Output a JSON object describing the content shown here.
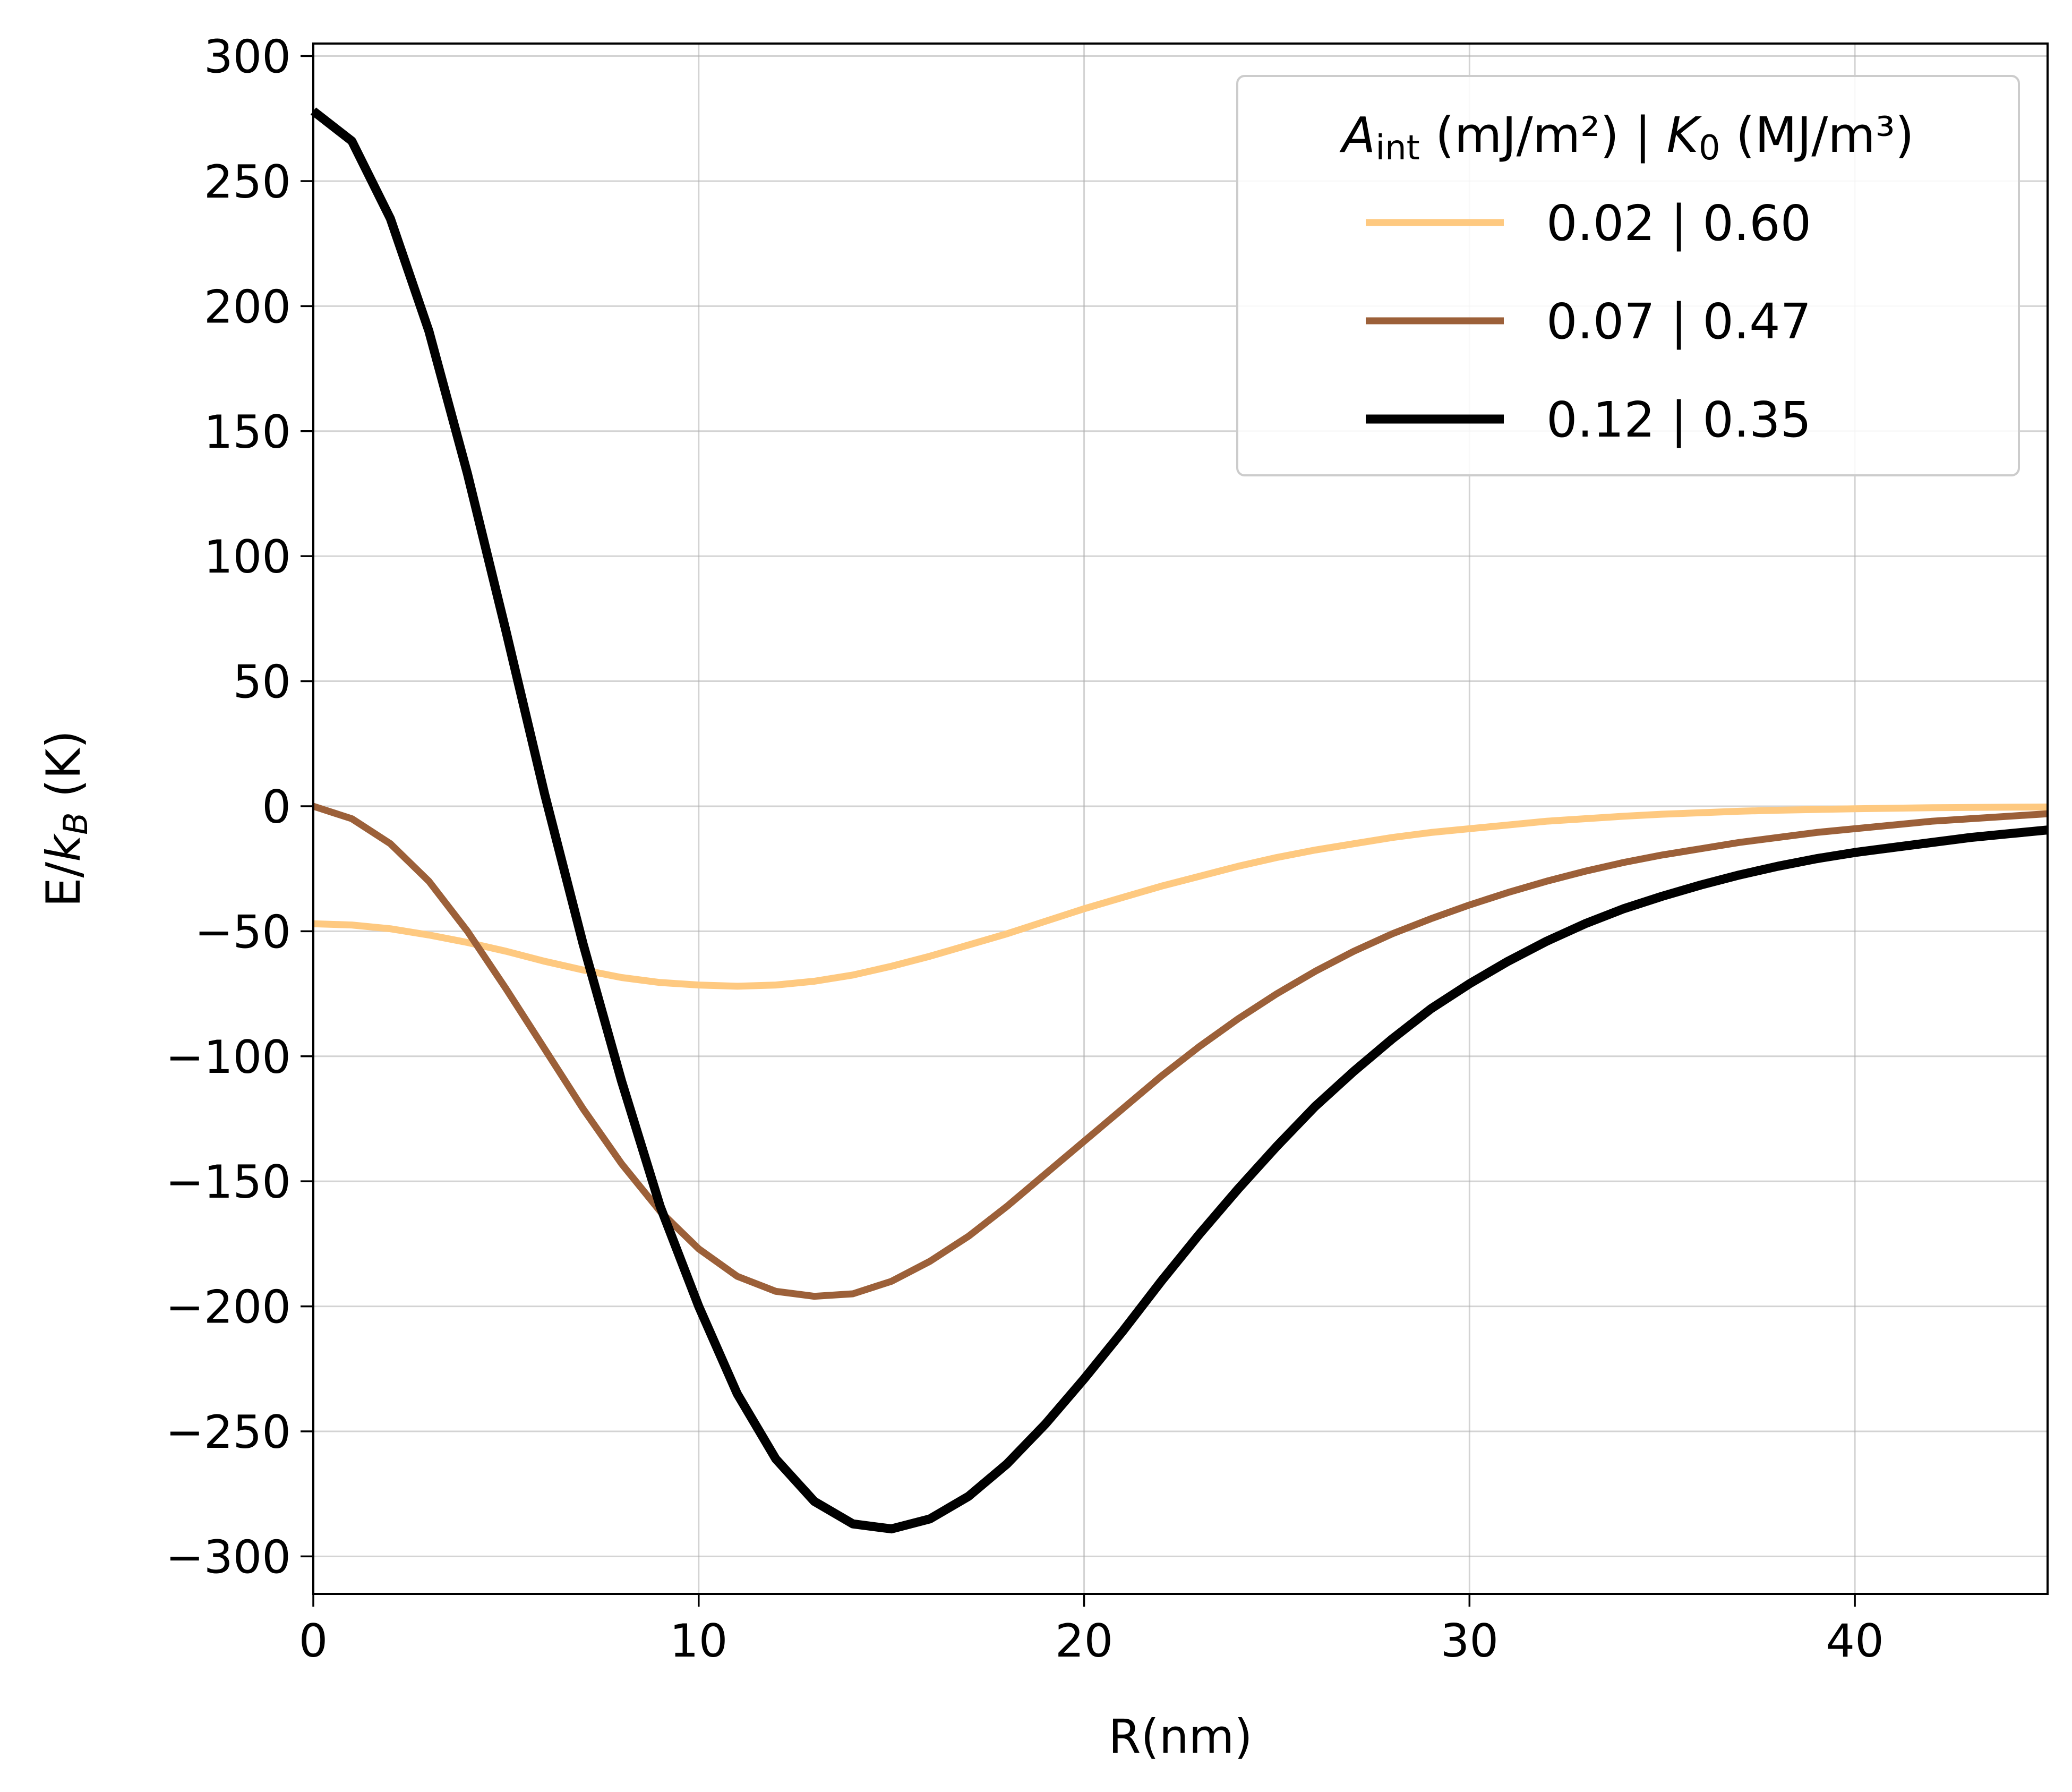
{
  "chart_data": {
    "type": "line",
    "title": "",
    "xlabel": "R(nm)",
    "ylabel": "E/k_B (K)",
    "ylabel_parts": {
      "main": "E/",
      "italic": "k",
      "sub": "B",
      "tail": " (K)"
    },
    "xlim": [
      0,
      45
    ],
    "ylim": [
      -315,
      305
    ],
    "x_ticks": [
      0,
      10,
      20,
      30,
      40
    ],
    "x_tick_labels": [
      "0",
      "10",
      "20",
      "30",
      "40"
    ],
    "y_ticks": [
      300,
      250,
      200,
      150,
      100,
      50,
      0,
      -50,
      -100,
      -150,
      -200,
      -250,
      -300
    ],
    "y_tick_labels": [
      "300",
      "250",
      "200",
      "150",
      "100",
      "50",
      "0",
      "−50",
      "−100",
      "−150",
      "−200",
      "−250",
      "−300"
    ],
    "grid": true,
    "legend": {
      "placement": "upper right",
      "title_parts": {
        "a_main": "A",
        "a_sub": "int",
        "a_unit": " (mJ/m²) | ",
        "k_main": "K",
        "k_sub": "0",
        "k_unit": " (MJ/m³)"
      }
    },
    "x": [
      0,
      1,
      2,
      3,
      4,
      5,
      6,
      7,
      8,
      9,
      10,
      11,
      12,
      13,
      14,
      15,
      16,
      17,
      18,
      19,
      20,
      21,
      22,
      23,
      24,
      25,
      26,
      27,
      28,
      29,
      30,
      31,
      32,
      33,
      34,
      35,
      36,
      37,
      38,
      39,
      40,
      41,
      42,
      43,
      44,
      45
    ],
    "series": [
      {
        "name": "0.02 | 0.60",
        "color": "#fec980",
        "line_weight": "medium",
        "values": [
          -47,
          -47.5,
          -49,
          -51.5,
          -54.5,
          -58,
          -62,
          -65.5,
          -68.5,
          -70.5,
          -71.5,
          -72,
          -71.5,
          -70,
          -67.5,
          -64,
          -60,
          -55.5,
          -51,
          -46,
          -41,
          -36.5,
          -32,
          -28,
          -24,
          -20.5,
          -17.5,
          -15,
          -12.5,
          -10.5,
          -9,
          -7.5,
          -6,
          -5,
          -4,
          -3.2,
          -2.6,
          -2,
          -1.6,
          -1.3,
          -1,
          -0.8,
          -0.6,
          -0.5,
          -0.4,
          -0.3
        ]
      },
      {
        "name": "0.07 | 0.47",
        "color": "#9c6039",
        "line_weight": "medium",
        "values": [
          0,
          -5,
          -15,
          -30,
          -50,
          -73,
          -97,
          -121,
          -143,
          -162,
          -177,
          -188,
          -194,
          -196,
          -195,
          -190,
          -182,
          -172,
          -160,
          -147,
          -134,
          -121,
          -108,
          -96,
          -85,
          -75,
          -66,
          -58,
          -51,
          -45,
          -39.5,
          -34.5,
          -30,
          -26,
          -22.5,
          -19.5,
          -17,
          -14.5,
          -12.5,
          -10.5,
          -9,
          -7.5,
          -6,
          -5,
          -4,
          -3
        ]
      },
      {
        "name": "0.12 | 0.35",
        "color": "#000000",
        "line_weight": "heavy",
        "values": [
          278,
          266,
          235,
          190,
          133,
          70,
          5,
          -55,
          -110,
          -160,
          -200,
          -235,
          -261,
          -278,
          -287,
          -289,
          -285,
          -276,
          -263,
          -247,
          -229,
          -210,
          -190,
          -171,
          -153,
          -136,
          -120,
          -106,
          -93,
          -81,
          -71,
          -62,
          -54,
          -47,
          -41,
          -36,
          -31.5,
          -27.5,
          -24,
          -21,
          -18.5,
          -16.5,
          -14.5,
          -12.5,
          -11,
          -9.5
        ]
      }
    ]
  }
}
